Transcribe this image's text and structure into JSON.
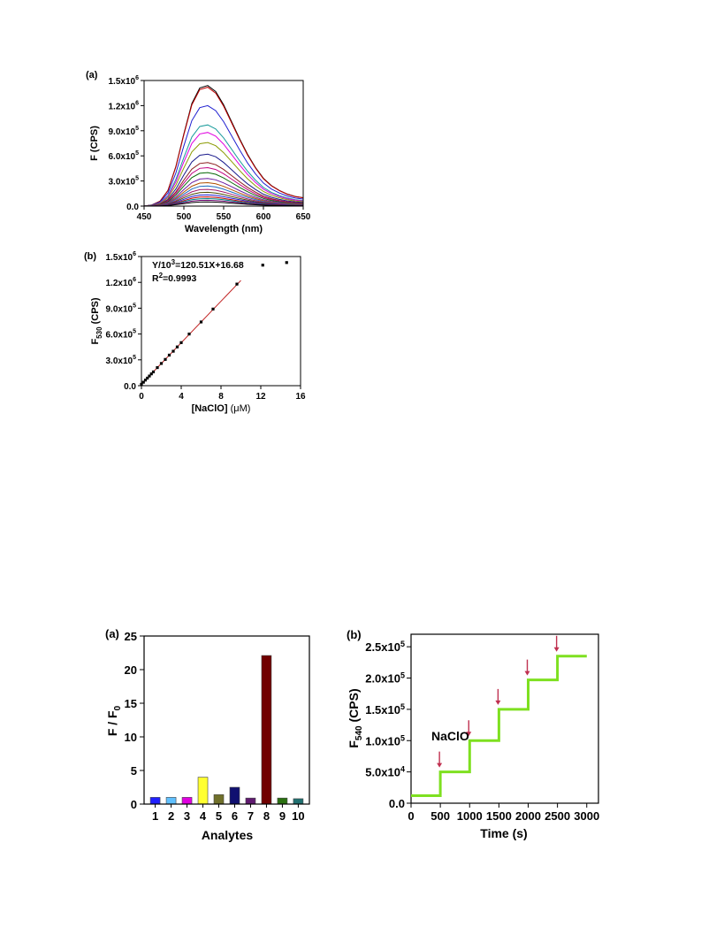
{
  "chart_data": [
    {
      "id": "panel_a",
      "panel_label": "(a)",
      "type": "line",
      "xlabel": "Wavelength (nm)",
      "ylabel": "F (CPS)",
      "xlim": [
        450,
        650
      ],
      "ylim": [
        0,
        1500000
      ],
      "xticks": [
        "450",
        "500",
        "550",
        "600",
        "650"
      ],
      "yticks": [
        {
          "value": 0,
          "label": "0.0"
        },
        {
          "value": 300000,
          "label": "3.0x10",
          "exp": "5"
        },
        {
          "value": 600000,
          "label": "6.0x10",
          "exp": "5"
        },
        {
          "value": 900000,
          "label": "9.0x10",
          "exp": "5"
        },
        {
          "value": 1200000,
          "label": "1.2x10",
          "exp": "6"
        },
        {
          "value": 1500000,
          "label": "1.5x10",
          "exp": "6"
        }
      ],
      "peak_wavelength": 530,
      "wavelengths": [
        450,
        460,
        470,
        480,
        490,
        500,
        510,
        520,
        530,
        540,
        550,
        560,
        570,
        580,
        590,
        600,
        610,
        620,
        630,
        640,
        650
      ],
      "normalized_profile": [
        0.0,
        0.01,
        0.04,
        0.13,
        0.33,
        0.6,
        0.85,
        0.98,
        1.0,
        0.95,
        0.84,
        0.7,
        0.56,
        0.43,
        0.32,
        0.23,
        0.17,
        0.13,
        0.1,
        0.08,
        0.07
      ],
      "series": [
        {
          "peak": 1440000,
          "color": "#000000"
        },
        {
          "peak": 1420000,
          "color": "#c00000"
        },
        {
          "peak": 1200000,
          "color": "#1f1fd0"
        },
        {
          "peak": 970000,
          "color": "#1a9c9c"
        },
        {
          "peak": 880000,
          "color": "#e000e0"
        },
        {
          "peak": 760000,
          "color": "#8a9a00"
        },
        {
          "peak": 620000,
          "color": "#1a1a8c"
        },
        {
          "peak": 520000,
          "color": "#8a1a1a"
        },
        {
          "peak": 460000,
          "color": "#c0007f"
        },
        {
          "peak": 400000,
          "color": "#0a6a0a"
        },
        {
          "peak": 330000,
          "color": "#6a1aa0"
        },
        {
          "peak": 280000,
          "color": "#b05000"
        },
        {
          "peak": 240000,
          "color": "#1a6ac0"
        },
        {
          "peak": 200000,
          "color": "#a01a6a"
        },
        {
          "peak": 165000,
          "color": "#4a4a00"
        },
        {
          "peak": 135000,
          "color": "#1f1fd0"
        },
        {
          "peak": 110000,
          "color": "#c00000"
        },
        {
          "peak": 90000,
          "color": "#008a8a"
        },
        {
          "peak": 70000,
          "color": "#6a006a"
        },
        {
          "peak": 50000,
          "color": "#000000"
        }
      ]
    },
    {
      "id": "panel_b",
      "panel_label": "(b)",
      "type": "scatter",
      "xlabel": "[NaClO] (μM)",
      "xlabel_main": "[NaClO]",
      "xlabel_unit": "(μM)",
      "ylabel_main": "F",
      "ylabel_sub": "530",
      "ylabel_unit": " (CPS)",
      "xlim": [
        0,
        16
      ],
      "ylim": [
        0,
        1500000
      ],
      "xticks": [
        "0",
        "4",
        "8",
        "12",
        "16"
      ],
      "yticks": [
        {
          "value": 0,
          "label": "0.0"
        },
        {
          "value": 300000,
          "label": "3.0x10",
          "exp": "5"
        },
        {
          "value": 600000,
          "label": "6.0x10",
          "exp": "5"
        },
        {
          "value": 900000,
          "label": "9.0x10",
          "exp": "5"
        },
        {
          "value": 1200000,
          "label": "1.2x10",
          "exp": "6"
        },
        {
          "value": 1500000,
          "label": "1.5x10",
          "exp": "6"
        }
      ],
      "equation_prefix": "Y/10",
      "equation_exp": "3",
      "equation_suffix": "=120.51X+16.68",
      "r2_prefix": "R",
      "r2_exp": "2",
      "r2_suffix": "=0.9993",
      "fit": {
        "slope": 120510,
        "intercept": 16680,
        "x_range": [
          0,
          10
        ]
      },
      "line_color": "#c02020",
      "x": [
        0.0,
        0.2,
        0.4,
        0.6,
        0.8,
        1.0,
        1.2,
        1.6,
        2.0,
        2.4,
        2.8,
        3.2,
        3.6,
        4.0,
        4.8,
        6.0,
        7.2,
        9.6,
        12.2,
        14.6
      ],
      "y": [
        16000,
        40000,
        65000,
        88000,
        112000,
        137000,
        160000,
        210000,
        258000,
        305000,
        355000,
        400000,
        450000,
        500000,
        600000,
        740000,
        890000,
        1180000,
        1400000,
        1430000
      ]
    },
    {
      "id": "panel_c",
      "panel_label": "(a)",
      "type": "bar",
      "xlabel": "Analytes",
      "ylabel_main": "F / F",
      "ylabel_sub": "0",
      "ylim": [
        0,
        25
      ],
      "yticks": [
        "0",
        "5",
        "10",
        "15",
        "20",
        "25"
      ],
      "categories": [
        "1",
        "2",
        "3",
        "4",
        "5",
        "6",
        "7",
        "8",
        "9",
        "10"
      ],
      "values": [
        1.0,
        1.0,
        1.0,
        4.0,
        1.4,
        2.5,
        0.9,
        22.1,
        0.9,
        0.8
      ],
      "colors": [
        "#2020ff",
        "#60c0ff",
        "#e000e0",
        "#ffff30",
        "#70702a",
        "#101070",
        "#601a70",
        "#700000",
        "#2a7010",
        "#207070"
      ]
    },
    {
      "id": "panel_d",
      "panel_label": "(b)",
      "type": "line",
      "xlabel": "Time (s)",
      "ylabel_main": "F",
      "ylabel_sub": "540",
      "ylabel_unit": " (CPS)",
      "xlim": [
        0,
        3200
      ],
      "ylim": [
        0,
        270000
      ],
      "xticks": [
        {
          "value": 0,
          "label": "0"
        },
        {
          "value": 500,
          "label": "500"
        },
        {
          "value": 1000,
          "label": "1000"
        },
        {
          "value": 1500,
          "label": "1500"
        },
        {
          "value": 2000,
          "label": "2000"
        },
        {
          "value": 2500,
          "label": "2500"
        },
        {
          "value": 3000,
          "label": "3000"
        }
      ],
      "yticks": [
        {
          "value": 0,
          "label": "0.0"
        },
        {
          "value": 50000,
          "label": "5.0x10",
          "exp": "4"
        },
        {
          "value": 100000,
          "label": "1.0x10",
          "exp": "5"
        },
        {
          "value": 150000,
          "label": "1.5x10",
          "exp": "5"
        },
        {
          "value": 200000,
          "label": "2.0x10",
          "exp": "5"
        },
        {
          "value": 250000,
          "label": "2.5x10",
          "exp": "5"
        }
      ],
      "annotation": "NaClO",
      "line_color": "#7ee020",
      "arrow_color": "#c03050",
      "steps": [
        {
          "start": 0,
          "end": 500,
          "value": 12000
        },
        {
          "start": 500,
          "end": 1000,
          "value": 50000
        },
        {
          "start": 1000,
          "end": 1500,
          "value": 100000
        },
        {
          "start": 1500,
          "end": 2000,
          "value": 150000
        },
        {
          "start": 2000,
          "end": 2500,
          "value": 197000
        },
        {
          "start": 2500,
          "end": 3000,
          "value": 235000
        }
      ],
      "arrows_at": [
        500,
        1000,
        1500,
        2000,
        2500
      ]
    }
  ]
}
